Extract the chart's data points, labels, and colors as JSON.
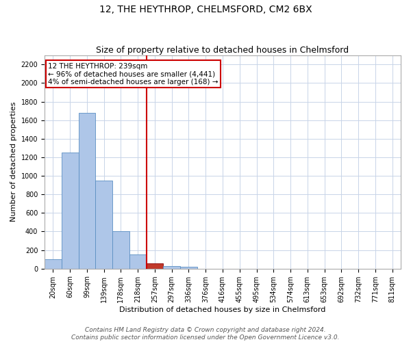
{
  "title": "12, THE HEYTHROP, CHELMSFORD, CM2 6BX",
  "subtitle": "Size of property relative to detached houses in Chelmsford",
  "xlabel": "Distribution of detached houses by size in Chelmsford",
  "ylabel": "Number of detached properties",
  "categories": [
    "20sqm",
    "60sqm",
    "99sqm",
    "139sqm",
    "178sqm",
    "218sqm",
    "257sqm",
    "297sqm",
    "336sqm",
    "376sqm",
    "416sqm",
    "455sqm",
    "495sqm",
    "534sqm",
    "574sqm",
    "613sqm",
    "653sqm",
    "692sqm",
    "732sqm",
    "771sqm",
    "811sqm"
  ],
  "values": [
    100,
    1250,
    1680,
    950,
    400,
    150,
    60,
    30,
    20,
    0,
    0,
    0,
    0,
    0,
    0,
    0,
    0,
    0,
    0,
    0,
    0
  ],
  "bar_color": "#aec6e8",
  "bar_edge_color": "#5a8fc2",
  "highlight_bar_index": 6,
  "highlight_bar_color": "#c0392b",
  "highlight_bar_edge_color": "#8b0000",
  "vline_color": "#cc0000",
  "annotation_text": "12 THE HEYTHROP: 239sqm\n← 96% of detached houses are smaller (4,441)\n4% of semi-detached houses are larger (168) →",
  "annotation_box_color": "#ffffff",
  "annotation_box_edge_color": "#cc0000",
  "ylim": [
    0,
    2300
  ],
  "yticks": [
    0,
    200,
    400,
    600,
    800,
    1000,
    1200,
    1400,
    1600,
    1800,
    2000,
    2200
  ],
  "footer_line1": "Contains HM Land Registry data © Crown copyright and database right 2024.",
  "footer_line2": "Contains public sector information licensed under the Open Government Licence v3.0.",
  "bg_color": "#ffffff",
  "grid_color": "#c8d4e8",
  "title_fontsize": 10,
  "subtitle_fontsize": 9,
  "axis_label_fontsize": 8,
  "tick_fontsize": 7,
  "annotation_fontsize": 7.5,
  "footer_fontsize": 6.5
}
